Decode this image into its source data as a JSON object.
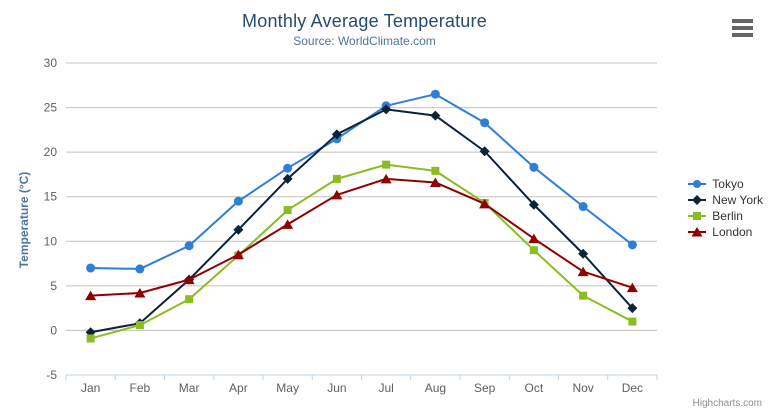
{
  "chart_data": {
    "type": "line",
    "title": "Monthly Average Temperature",
    "subtitle": "Source: WorldClimate.com",
    "xlabel": "",
    "ylabel": "Temperature (°C)",
    "categories": [
      "Jan",
      "Feb",
      "Mar",
      "Apr",
      "May",
      "Jun",
      "Jul",
      "Aug",
      "Sep",
      "Oct",
      "Nov",
      "Dec"
    ],
    "ylim": [
      -5,
      30
    ],
    "ytick_step": 5,
    "grid": true,
    "legend_position": "right",
    "colors": {
      "grid": "#C0C0C0",
      "axis_line": "#C0D0E0",
      "tick_label": "#606060",
      "title": "#274b6d",
      "subtitle": "#4d759e",
      "legend_text": "#333333"
    },
    "series": [
      {
        "name": "Tokyo",
        "color": "#2f7ed8",
        "marker": "circle",
        "values": [
          7.0,
          6.9,
          9.5,
          14.5,
          18.2,
          21.5,
          25.2,
          26.5,
          23.3,
          18.3,
          13.9,
          9.6
        ]
      },
      {
        "name": "New York",
        "color": "#0d233a",
        "marker": "diamond",
        "values": [
          -0.2,
          0.8,
          5.7,
          11.3,
          17.0,
          22.0,
          24.8,
          24.1,
          20.1,
          14.1,
          8.6,
          2.5
        ]
      },
      {
        "name": "Berlin",
        "color": "#8bbc21",
        "marker": "square",
        "values": [
          -0.9,
          0.6,
          3.5,
          8.4,
          13.5,
          17.0,
          18.6,
          17.9,
          14.3,
          9.0,
          3.9,
          1.0
        ]
      },
      {
        "name": "London",
        "color": "#910000",
        "marker": "triangle",
        "values": [
          3.9,
          4.2,
          5.7,
          8.5,
          11.9,
          15.2,
          17.0,
          16.6,
          14.2,
          10.3,
          6.6,
          4.8
        ]
      }
    ]
  },
  "credits": {
    "label": "Highcharts.com"
  },
  "toolbar": {
    "menu_icon": "hamburger-icon"
  }
}
